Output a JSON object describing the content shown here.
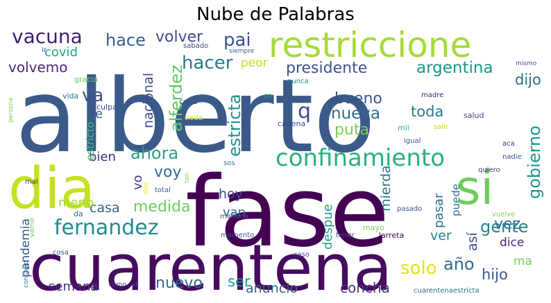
{
  "chart_data": {
    "type": "wordcloud",
    "title": "Nube de Palabras",
    "words": [
      {
        "text": "alberto",
        "color": "#3b5a8a"
      },
      {
        "text": "fase",
        "color": "#440154"
      },
      {
        "text": "cuarentena",
        "color": "#460b5e"
      },
      {
        "text": "dia",
        "color": "#c8e020"
      },
      {
        "text": "si",
        "color": "#6ccd5a"
      },
      {
        "text": "restriccione",
        "color": "#a5db36"
      },
      {
        "text": "confinamiento",
        "color": "#2ab07f"
      },
      {
        "text": "vacuna",
        "color": "#3f1e6e"
      },
      {
        "text": "fernandez",
        "color": "#238a8d"
      },
      {
        "text": "hace",
        "color": "#355f8d"
      },
      {
        "text": "volver",
        "color": "#3e4a89"
      },
      {
        "text": "pai",
        "color": "#3b528b"
      },
      {
        "text": "hacer",
        "color": "#2a768e"
      },
      {
        "text": "presidente",
        "color": "#3b528b"
      },
      {
        "text": "argentina",
        "color": "#20928c"
      },
      {
        "text": "volvemo",
        "color": "#482878"
      },
      {
        "text": "covid",
        "color": "#22a884"
      },
      {
        "text": "va",
        "color": "#3b528b"
      },
      {
        "text": "ahora",
        "color": "#2a9d86"
      },
      {
        "text": "voy",
        "color": "#2c728e"
      },
      {
        "text": "medida",
        "color": "#6ece58"
      },
      {
        "text": "gobierno",
        "color": "#1f968b"
      },
      {
        "text": "gente",
        "color": "#26828e"
      },
      {
        "text": "nueva",
        "color": "#2f6c8e"
      },
      {
        "text": "bueno",
        "color": "#39568c"
      },
      {
        "text": "puta",
        "color": "#7ad151"
      },
      {
        "text": "toda",
        "color": "#2a788e"
      },
      {
        "text": "q",
        "color": "#3e4989"
      },
      {
        "text": "dijo",
        "color": "#2e6e8e"
      },
      {
        "text": "alferdez",
        "color": "#5ec962"
      },
      {
        "text": "nacional",
        "color": "#404588"
      },
      {
        "text": "estricta",
        "color": "#21918c"
      },
      {
        "text": "peor",
        "color": "#bddf26"
      },
      {
        "text": "re",
        "color": "#3b528b"
      },
      {
        "text": "bien",
        "color": "#472c7a"
      },
      {
        "text": "vo",
        "color": "#433e85"
      },
      {
        "text": "hoy",
        "color": "#3e4a89"
      },
      {
        "text": "van",
        "color": "#31688e"
      },
      {
        "text": "casa",
        "color": "#33638d"
      },
      {
        "text": "meno",
        "color": "#9fda3a"
      },
      {
        "text": "mierda",
        "color": "#2c728e"
      },
      {
        "text": "despue",
        "color": "#1f9e89"
      },
      {
        "text": "pasar",
        "color": "#2d708e"
      },
      {
        "text": "puede",
        "color": "#2c728e"
      },
      {
        "text": "así",
        "color": "#3e4a89"
      },
      {
        "text": "ver",
        "color": "#26828e"
      },
      {
        "text": "vez",
        "color": "#2c738e"
      },
      {
        "text": "dice",
        "color": "#482677"
      },
      {
        "text": "año",
        "color": "#31688e"
      },
      {
        "text": "ma",
        "color": "#73d056"
      },
      {
        "text": "solo",
        "color": "#e3e418"
      },
      {
        "text": "hijo",
        "color": "#39568c"
      },
      {
        "text": "ser",
        "color": "#20928c"
      },
      {
        "text": "nuevo",
        "color": "#31688e"
      },
      {
        "text": "anuncio",
        "color": "#33638d"
      },
      {
        "text": "concha",
        "color": "#443983"
      },
      {
        "text": "semana",
        "color": "#472a7a"
      },
      {
        "text": "pandemia",
        "color": "#3b528b"
      },
      {
        "text": "estricto",
        "color": "#42be71"
      },
      {
        "text": "gracia",
        "color": "#5ec962"
      },
      {
        "text": "vida",
        "color": "#2a788e"
      },
      {
        "text": "culpa",
        "color": "#414487"
      },
      {
        "text": "copa",
        "color": "#3b528b"
      },
      {
        "text": "cada",
        "color": "#dde318"
      },
      {
        "text": "nunca",
        "color": "#26828e"
      },
      {
        "text": "se",
        "color": "#20928c"
      },
      {
        "text": "cadena",
        "color": "#3e4989"
      },
      {
        "text": "madre",
        "color": "#482475"
      },
      {
        "text": "salud",
        "color": "#414487"
      },
      {
        "text": "mil",
        "color": "#35b779"
      },
      {
        "text": "salir",
        "color": "#b5de2b"
      },
      {
        "text": "igual",
        "color": "#3b528b"
      },
      {
        "text": "aca",
        "color": "#482878"
      },
      {
        "text": "nadie",
        "color": "#3b528b"
      },
      {
        "text": "quiero",
        "color": "#443983"
      },
      {
        "text": "sos",
        "color": "#2a788e"
      },
      {
        "text": "tan",
        "color": "#84d44b"
      },
      {
        "text": "dos",
        "color": "#fde725"
      },
      {
        "text": "total",
        "color": "#3b528b"
      },
      {
        "text": "mal",
        "color": "#472d7b"
      },
      {
        "text": "da",
        "color": "#2c738e"
      },
      {
        "text": "vamo",
        "color": "#6ece58"
      },
      {
        "text": "mañana",
        "color": "#3e4a89"
      },
      {
        "text": "momento",
        "color": "#38588c"
      },
      {
        "text": "tener",
        "color": "#3b528b"
      },
      {
        "text": "larreta",
        "color": "#440154"
      },
      {
        "text": "mayo",
        "color": "#7ad151"
      },
      {
        "text": "pasado",
        "color": "#3b528b"
      },
      {
        "text": "vuelve",
        "color": "#84d44b"
      },
      {
        "text": "caso",
        "color": "#3e4989"
      },
      {
        "text": "cosa",
        "color": "#3b528b"
      },
      {
        "text": "contagio",
        "color": "#2a788e"
      },
      {
        "text": "como",
        "color": "#3e4989"
      },
      {
        "text": "d",
        "color": "#3b528b"
      },
      {
        "text": "cuarentenaestricta",
        "color": "#2d708e"
      },
      {
        "text": "sabado",
        "color": "#3e4a89"
      },
      {
        "text": "siempre",
        "color": "#3b528b"
      },
      {
        "text": "mismo",
        "color": "#3b528b"
      },
      {
        "text": "ir",
        "color": "#3b528b"
      },
      {
        "text": "persona",
        "color": "#7ad151"
      }
    ]
  }
}
